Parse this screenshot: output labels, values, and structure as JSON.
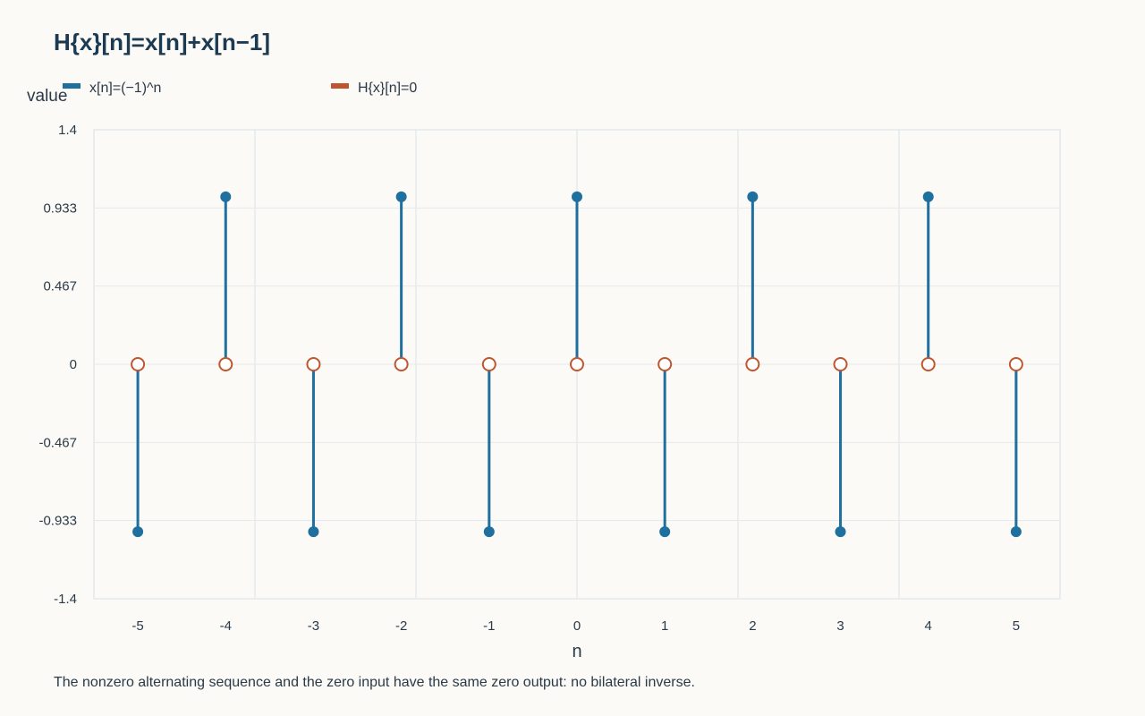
{
  "chart_data": {
    "type": "stem",
    "title": "H{x}[n]=x[n]+x[n−1]",
    "xlabel": "n",
    "ylabel": "value",
    "caption": "The nonzero alternating sequence and the zero input have the same zero output: no bilateral inverse.",
    "x": [
      -5,
      -4,
      -3,
      -2,
      -1,
      0,
      1,
      2,
      3,
      4,
      5
    ],
    "xticks": [
      "-5",
      "-4",
      "-3",
      "-2",
      "-1",
      "0",
      "1",
      "2",
      "3",
      "4",
      "5"
    ],
    "ylim": [
      -1.4,
      1.4
    ],
    "yticks": [
      1.4,
      0.933,
      0.467,
      0,
      -0.467,
      -0.933,
      -1.4
    ],
    "ytick_labels": [
      "1.4",
      "0.933",
      "0.467",
      "0",
      "-0.467",
      "-0.933",
      "-1.4"
    ],
    "grid": true,
    "legend_position": "top-left",
    "series": [
      {
        "name": "x[n]=(−1)^n",
        "color": "#1f6f9f",
        "marker": "filled-circle",
        "values": [
          -1,
          1,
          -1,
          1,
          -1,
          1,
          -1,
          1,
          -1,
          1,
          -1
        ]
      },
      {
        "name": "H{x}[n]=0",
        "color": "#c0562f",
        "marker": "open-circle",
        "values": [
          0,
          0,
          0,
          0,
          0,
          0,
          0,
          0,
          0,
          0,
          0
        ]
      }
    ]
  }
}
